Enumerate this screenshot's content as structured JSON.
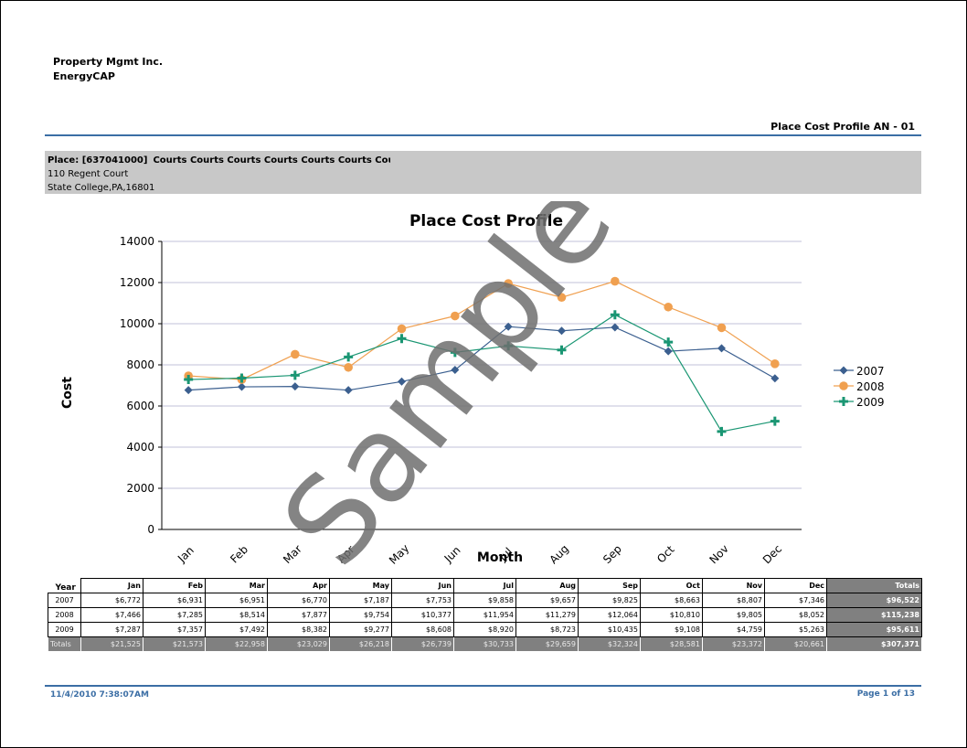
{
  "header": {
    "company": "Property Mgmt Inc.",
    "product": "EnergyCAP",
    "report_title": "Place Cost Profile AN - 01"
  },
  "place": {
    "code": "Place: [637041000]",
    "name": "Courts Courts Courts Courts Courts Courts Courts",
    "address": "110 Regent Court",
    "city": "State College,PA,16801"
  },
  "watermark": "Sample",
  "chart_data": {
    "type": "line",
    "title": "Place Cost Profile",
    "xlabel": "Month",
    "ylabel": "Cost",
    "categories": [
      "Jan",
      "Feb",
      "Mar",
      "Apr",
      "May",
      "Jun",
      "Jul",
      "Aug",
      "Sep",
      "Oct",
      "Nov",
      "Dec"
    ],
    "ylim": [
      0,
      14000
    ],
    "yticks": [
      0,
      2000,
      4000,
      6000,
      8000,
      10000,
      12000,
      14000
    ],
    "grid": true,
    "legend": "right",
    "series": [
      {
        "name": "2007",
        "color": "#3b5f8f",
        "marker": "diamond",
        "values": [
          6772,
          6931,
          6951,
          6770,
          7187,
          7753,
          9858,
          9657,
          9825,
          8663,
          8807,
          7346
        ]
      },
      {
        "name": "2008",
        "color": "#f0a050",
        "marker": "circle",
        "values": [
          7466,
          7285,
          8514,
          7877,
          9754,
          10377,
          11954,
          11279,
          12064,
          10810,
          9805,
          8052
        ]
      },
      {
        "name": "2009",
        "color": "#1a9673",
        "marker": "plus",
        "values": [
          7287,
          7357,
          7492,
          8382,
          9277,
          8608,
          8920,
          8723,
          10435,
          9108,
          4759,
          5263
        ]
      }
    ]
  },
  "table": {
    "year_label": "Year",
    "columns": [
      "Jan",
      "Feb",
      "Mar",
      "Apr",
      "May",
      "Jun",
      "Jul",
      "Aug",
      "Sep",
      "Oct",
      "Nov",
      "Dec",
      "Totals"
    ],
    "rows": [
      {
        "year": "2007",
        "cells": [
          "$6,772",
          "$6,931",
          "$6,951",
          "$6,770",
          "$7,187",
          "$7,753",
          "$9,858",
          "$9,657",
          "$9,825",
          "$8,663",
          "$8,807",
          "$7,346"
        ],
        "total": "$96,522"
      },
      {
        "year": "2008",
        "cells": [
          "$7,466",
          "$7,285",
          "$8,514",
          "$7,877",
          "$9,754",
          "$10,377",
          "$11,954",
          "$11,279",
          "$12,064",
          "$10,810",
          "$9,805",
          "$8,052"
        ],
        "total": "$115,238"
      },
      {
        "year": "2009",
        "cells": [
          "$7,287",
          "$7,357",
          "$7,492",
          "$8,382",
          "$9,277",
          "$8,608",
          "$8,920",
          "$8,723",
          "$10,435",
          "$9,108",
          "$4,759",
          "$5,263"
        ],
        "total": "$95,611"
      }
    ],
    "totals_label": "Totals",
    "totals": [
      "$21,525",
      "$21,573",
      "$22,958",
      "$23,029",
      "$26,218",
      "$26,739",
      "$30,733",
      "$29,659",
      "$32,324",
      "$28,581",
      "$23,372",
      "$20,661"
    ],
    "grand_total": "$307,371"
  },
  "footer": {
    "datetime": "11/4/2010 7:38:07AM",
    "page": "Page 1 of 13"
  }
}
